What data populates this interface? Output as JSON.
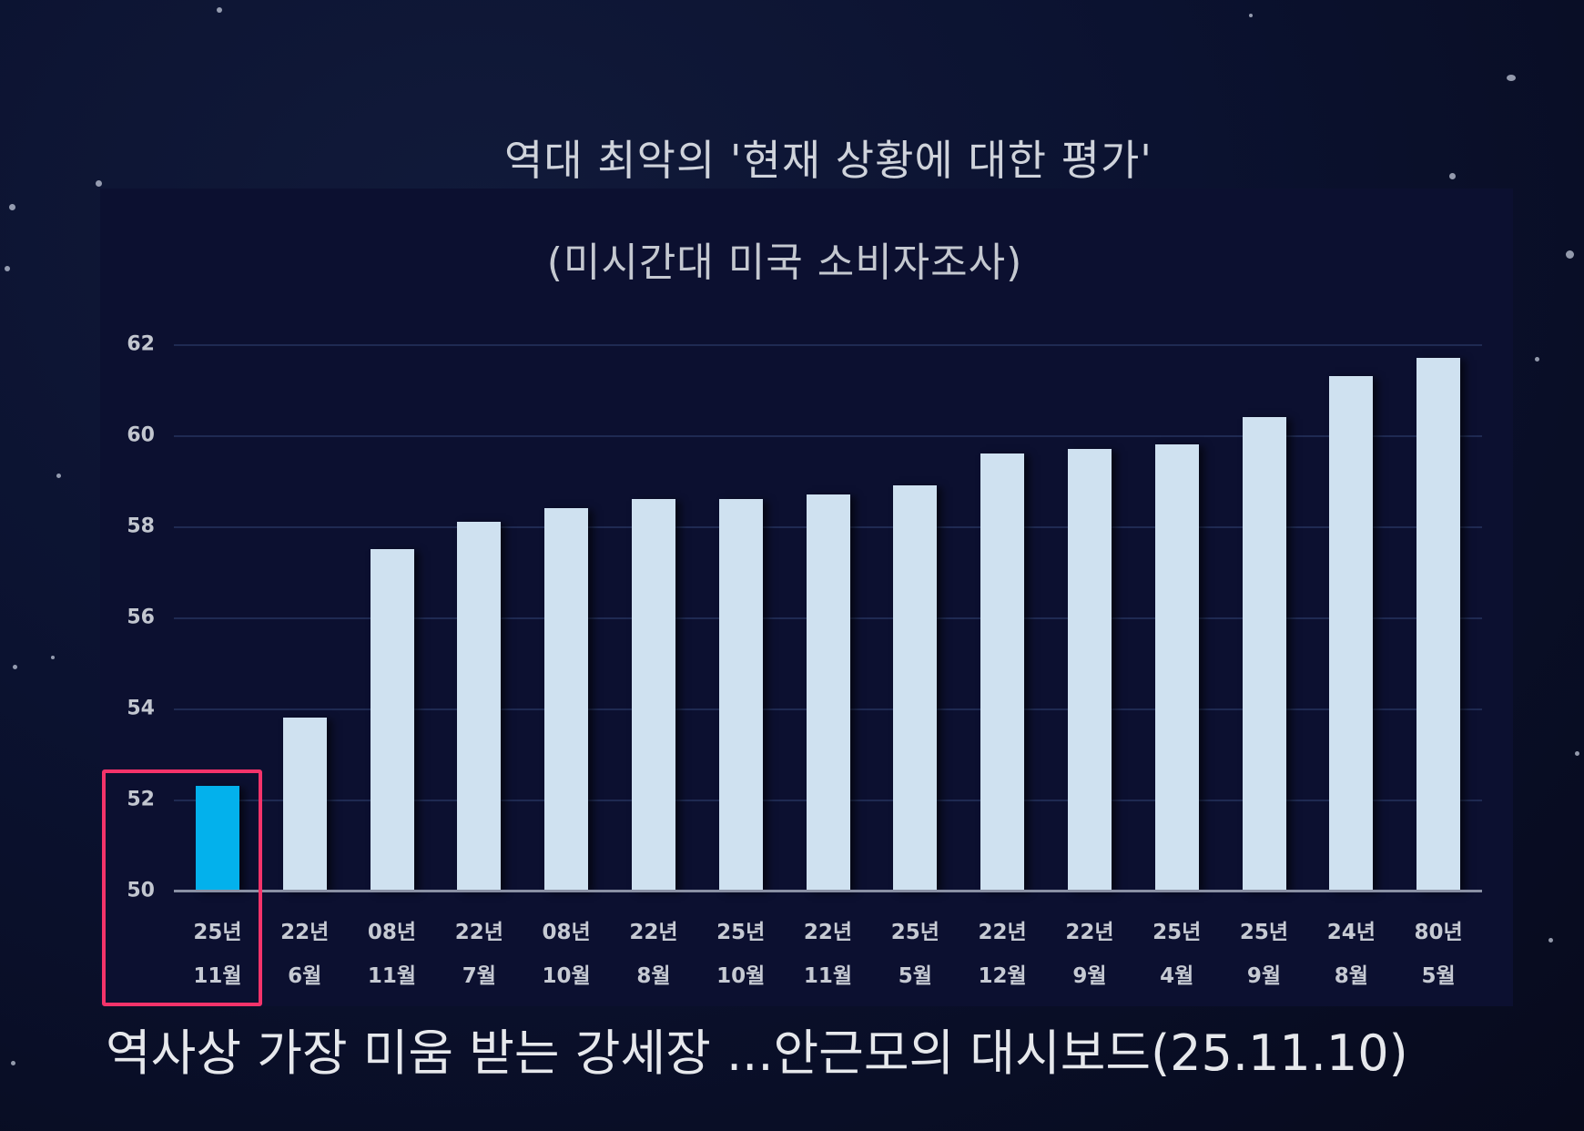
{
  "title": "역대 최악의 '현재 상황에 대한 평가'",
  "subtitle": "(미시간대 미국 소비자조사)",
  "caption": "역사상 가장 미움 받는 강세장 ...안근모의 대시보드(25.11.10)",
  "colors": {
    "background": "#0b1230",
    "panel": "#0c1030",
    "bar": "#cfe1f0",
    "highlight_bar": "#03b1ec",
    "highlight_box": "#f5336a",
    "gridline": "#1f2a52",
    "text": "#cfd3db"
  },
  "y_ticks": [
    "62",
    "60",
    "58",
    "56",
    "54",
    "52",
    "50"
  ],
  "x_labels": [
    {
      "year": "25년",
      "month": "11월"
    },
    {
      "year": "22년",
      "month": "6월"
    },
    {
      "year": "08년",
      "month": "11월"
    },
    {
      "year": "22년",
      "month": "7월"
    },
    {
      "year": "08년",
      "month": "10월"
    },
    {
      "year": "22년",
      "month": "8월"
    },
    {
      "year": "25년",
      "month": "10월"
    },
    {
      "year": "22년",
      "month": "11월"
    },
    {
      "year": "25년",
      "month": "5월"
    },
    {
      "year": "22년",
      "month": "12월"
    },
    {
      "year": "22년",
      "month": "9월"
    },
    {
      "year": "25년",
      "month": "4월"
    },
    {
      "year": "25년",
      "month": "9월"
    },
    {
      "year": "24년",
      "month": "8월"
    },
    {
      "year": "80년",
      "month": "5월"
    }
  ],
  "chart_data": {
    "type": "bar",
    "title": "역대 최악의 '현재 상황에 대한 평가'",
    "subtitle": "(미시간대 미국 소비자조사)",
    "categories": [
      "25년 11월",
      "22년 6월",
      "08년 11월",
      "22년 7월",
      "08년 10월",
      "22년 8월",
      "25년 10월",
      "22년 11월",
      "25년 5월",
      "22년 12월",
      "22년 9월",
      "25년 4월",
      "25년 9월",
      "24년 8월",
      "80년 5월"
    ],
    "values": [
      52.3,
      53.8,
      57.5,
      58.1,
      58.4,
      58.6,
      58.6,
      58.7,
      58.9,
      59.6,
      59.7,
      59.8,
      60.4,
      61.3,
      61.7
    ],
    "highlighted_index": 0,
    "xlabel": "",
    "ylabel": "",
    "ylim": [
      50,
      62
    ],
    "yticks": [
      50,
      52,
      54,
      56,
      58,
      60,
      62
    ],
    "grid": true,
    "legend": "none",
    "annotations": [
      "highlight box around 25년 11월 bar"
    ]
  }
}
